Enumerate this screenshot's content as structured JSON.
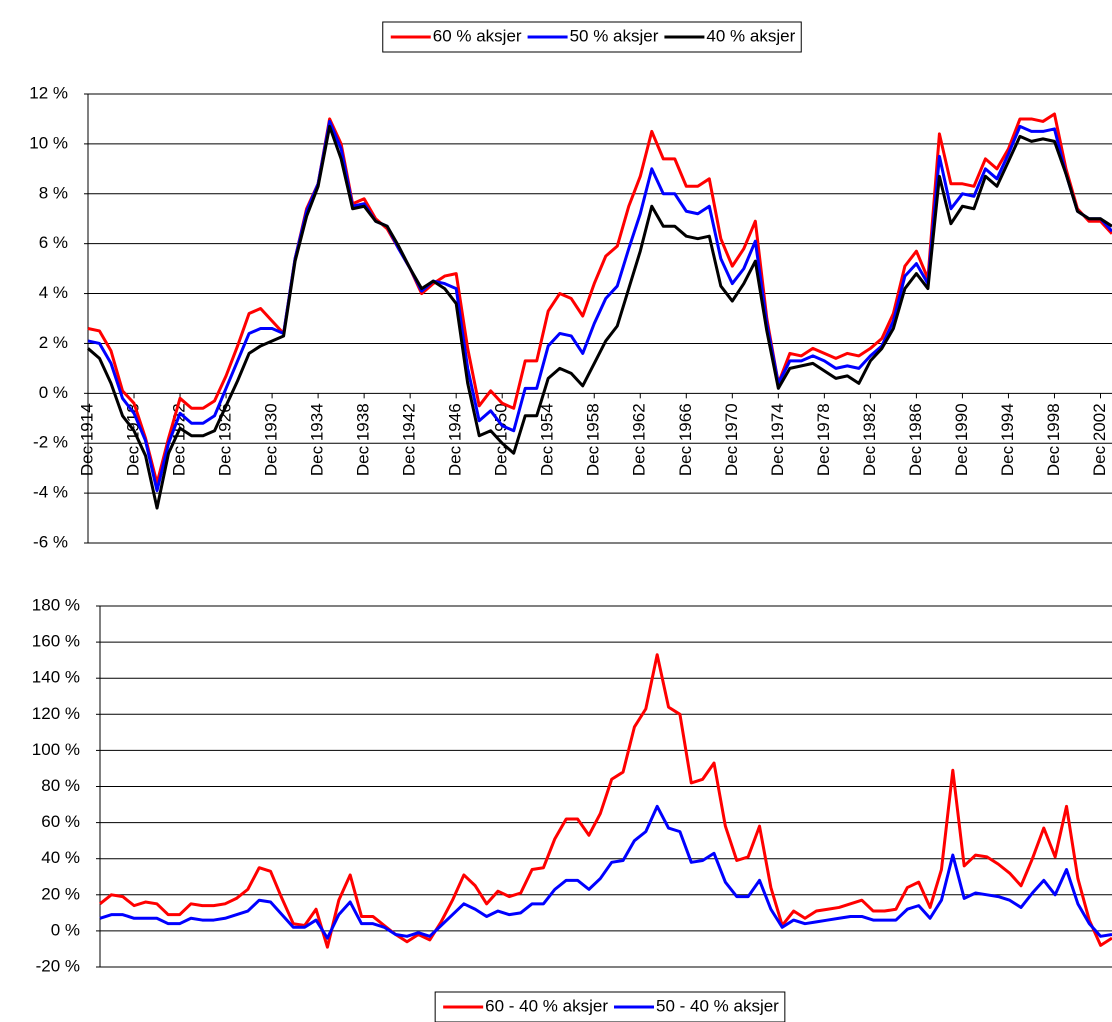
{
  "chart_data": [
    {
      "type": "line",
      "legend": "top",
      "grid": true,
      "x": [
        1914,
        1915,
        1916,
        1917,
        1918,
        1919,
        1920,
        1921,
        1922,
        1923,
        1924,
        1925,
        1926,
        1927,
        1928,
        1929,
        1930,
        1931,
        1932,
        1933,
        1934,
        1935,
        1936,
        1937,
        1938,
        1939,
        1940,
        1941,
        1942,
        1943,
        1944,
        1945,
        1946,
        1947,
        1948,
        1949,
        1950,
        1951,
        1952,
        1953,
        1954,
        1955,
        1956,
        1957,
        1958,
        1959,
        1960,
        1961,
        1962,
        1963,
        1964,
        1965,
        1966,
        1967,
        1968,
        1969,
        1970,
        1971,
        1972,
        1973,
        1974,
        1975,
        1976,
        1977,
        1978,
        1979,
        1980,
        1981,
        1982,
        1983,
        1984,
        1985,
        1986,
        1987,
        1988,
        1989,
        1990,
        1991,
        1992,
        1993,
        1994,
        1995,
        1996,
        1997,
        1998,
        1999,
        2000,
        2001,
        2002,
        2003
      ],
      "xlim": [
        1914,
        2003
      ],
      "xticks": [
        {
          "value": 1914,
          "label": "Dec 1914"
        },
        {
          "value": 1918,
          "label": "Dec 1918"
        },
        {
          "value": 1922,
          "label": "Dec 1922"
        },
        {
          "value": 1926,
          "label": "Dec 1926"
        },
        {
          "value": 1930,
          "label": "Dec 1930"
        },
        {
          "value": 1934,
          "label": "Dec 1934"
        },
        {
          "value": 1938,
          "label": "Dec 1938"
        },
        {
          "value": 1942,
          "label": "Dec 1942"
        },
        {
          "value": 1946,
          "label": "Dec 1946"
        },
        {
          "value": 1950,
          "label": "Dec 1950"
        },
        {
          "value": 1954,
          "label": "Dec 1954"
        },
        {
          "value": 1958,
          "label": "Dec 1958"
        },
        {
          "value": 1962,
          "label": "Dec 1962"
        },
        {
          "value": 1966,
          "label": "Dec 1966"
        },
        {
          "value": 1970,
          "label": "Dec 1970"
        },
        {
          "value": 1974,
          "label": "Dec 1974"
        },
        {
          "value": 1978,
          "label": "Dec 1978"
        },
        {
          "value": 1982,
          "label": "Dec 1982"
        },
        {
          "value": 1986,
          "label": "Dec 1986"
        },
        {
          "value": 1990,
          "label": "Dec 1990"
        },
        {
          "value": 1994,
          "label": "Dec 1994"
        },
        {
          "value": 1998,
          "label": "Dec 1998"
        },
        {
          "value": 2002,
          "label": "Dec 2002"
        }
      ],
      "ylim": [
        -6,
        12
      ],
      "yticks": [
        {
          "value": -6,
          "label": "-6 %"
        },
        {
          "value": -4,
          "label": "-4 %"
        },
        {
          "value": -2,
          "label": "-2 %"
        },
        {
          "value": 0,
          "label": "0 %"
        },
        {
          "value": 2,
          "label": "2 %"
        },
        {
          "value": 4,
          "label": "4 %"
        },
        {
          "value": 6,
          "label": "6 %"
        },
        {
          "value": 8,
          "label": "8 %"
        },
        {
          "value": 10,
          "label": "10 %"
        },
        {
          "value": 12,
          "label": "12 %"
        }
      ],
      "series": [
        {
          "name": "60 % aksjer",
          "color": "#ff0000",
          "values": [
            2.6,
            2.5,
            1.7,
            0.1,
            -0.4,
            -1.8,
            -3.6,
            -1.8,
            -0.2,
            -0.6,
            -0.6,
            -0.3,
            0.7,
            1.9,
            3.2,
            3.4,
            2.9,
            2.4,
            5.4,
            7.4,
            8.4,
            11.0,
            10.0,
            7.6,
            7.8,
            7.0,
            6.6,
            5.8,
            5.0,
            4.0,
            4.4,
            4.7,
            4.8,
            1.8,
            -0.5,
            0.1,
            -0.4,
            -0.6,
            1.3,
            1.3,
            3.3,
            4.0,
            3.8,
            3.1,
            4.4,
            5.5,
            5.9,
            7.5,
            8.7,
            10.5,
            9.4,
            9.4,
            8.3,
            8.3,
            8.6,
            6.2,
            5.1,
            5.8,
            6.9,
            3.0,
            0.4,
            1.6,
            1.5,
            1.8,
            1.6,
            1.4,
            1.6,
            1.5,
            1.8,
            2.2,
            3.2,
            5.1,
            5.7,
            4.6,
            10.4,
            8.4,
            8.4,
            8.3,
            9.4,
            9.0,
            9.8,
            11.0,
            11.0,
            10.9,
            11.2,
            9.0,
            7.4,
            6.9,
            6.9,
            6.4
          ]
        },
        {
          "name": "50 % aksjer",
          "color": "#0000ff",
          "values": [
            2.1,
            2.0,
            1.2,
            -0.2,
            -0.8,
            -1.9,
            -3.9,
            -2.0,
            -0.8,
            -1.2,
            -1.2,
            -0.9,
            0.2,
            1.3,
            2.4,
            2.6,
            2.6,
            2.4,
            5.4,
            7.3,
            8.4,
            10.9,
            9.8,
            7.5,
            7.6,
            6.9,
            6.7,
            5.8,
            5.0,
            4.1,
            4.5,
            4.4,
            4.2,
            1.0,
            -1.1,
            -0.7,
            -1.3,
            -1.5,
            0.2,
            0.2,
            1.9,
            2.4,
            2.3,
            1.6,
            2.8,
            3.8,
            4.3,
            5.8,
            7.2,
            9.0,
            8.0,
            8.0,
            7.3,
            7.2,
            7.5,
            5.4,
            4.4,
            5.0,
            6.1,
            2.8,
            0.4,
            1.3,
            1.3,
            1.5,
            1.3,
            1.0,
            1.1,
            1.0,
            1.5,
            1.9,
            2.9,
            4.7,
            5.2,
            4.4,
            9.5,
            7.4,
            8.0,
            7.9,
            9.0,
            8.6,
            9.6,
            10.7,
            10.5,
            10.5,
            10.6,
            8.8,
            7.3,
            7.0,
            7.0,
            6.5
          ]
        },
        {
          "name": "40 % aksjer",
          "color": "#000000",
          "values": [
            1.8,
            1.4,
            0.4,
            -0.9,
            -1.5,
            -2.5,
            -4.6,
            -2.4,
            -1.4,
            -1.7,
            -1.7,
            -1.5,
            -0.5,
            0.5,
            1.6,
            1.9,
            2.1,
            2.3,
            5.3,
            7.1,
            8.3,
            10.7,
            9.4,
            7.4,
            7.5,
            6.9,
            6.7,
            5.9,
            5.0,
            4.2,
            4.5,
            4.2,
            3.6,
            0.4,
            -1.7,
            -1.5,
            -2.0,
            -2.4,
            -0.9,
            -0.9,
            0.6,
            1.0,
            0.8,
            0.3,
            1.2,
            2.1,
            2.7,
            4.2,
            5.7,
            7.5,
            6.7,
            6.7,
            6.3,
            6.2,
            6.3,
            4.3,
            3.7,
            4.4,
            5.3,
            2.5,
            0.2,
            1.0,
            1.1,
            1.2,
            0.9,
            0.6,
            0.7,
            0.4,
            1.3,
            1.8,
            2.6,
            4.2,
            4.8,
            4.2,
            8.7,
            6.8,
            7.5,
            7.4,
            8.7,
            8.3,
            9.3,
            10.3,
            10.1,
            10.2,
            10.1,
            8.8,
            7.3,
            7.0,
            7.0,
            6.7
          ]
        }
      ]
    },
    {
      "type": "line",
      "legend": "bottom",
      "grid": true,
      "x": [
        1914,
        1915,
        1916,
        1917,
        1918,
        1919,
        1920,
        1921,
        1922,
        1923,
        1924,
        1925,
        1926,
        1927,
        1928,
        1929,
        1930,
        1931,
        1932,
        1933,
        1934,
        1935,
        1936,
        1937,
        1938,
        1939,
        1940,
        1941,
        1942,
        1943,
        1944,
        1945,
        1946,
        1947,
        1948,
        1949,
        1950,
        1951,
        1952,
        1953,
        1954,
        1955,
        1956,
        1957,
        1958,
        1959,
        1960,
        1961,
        1962,
        1963,
        1964,
        1965,
        1966,
        1967,
        1968,
        1969,
        1970,
        1971,
        1972,
        1973,
        1974,
        1975,
        1976,
        1977,
        1978,
        1979,
        1980,
        1981,
        1982,
        1983,
        1984,
        1985,
        1986,
        1987,
        1988,
        1989,
        1990,
        1991,
        1992,
        1993,
        1994,
        1995,
        1996,
        1997,
        1998,
        1999,
        2000,
        2001,
        2002,
        2003
      ],
      "xlim": [
        1914,
        2003
      ],
      "ylim": [
        -20,
        180
      ],
      "yticks": [
        {
          "value": -20,
          "label": "-20 %"
        },
        {
          "value": 0,
          "label": "0 %"
        },
        {
          "value": 20,
          "label": "20 %"
        },
        {
          "value": 40,
          "label": "40 %"
        },
        {
          "value": 60,
          "label": "60 %"
        },
        {
          "value": 80,
          "label": "80 %"
        },
        {
          "value": 100,
          "label": "100 %"
        },
        {
          "value": 120,
          "label": "120 %"
        },
        {
          "value": 140,
          "label": "140 %"
        },
        {
          "value": 160,
          "label": "160 %"
        },
        {
          "value": 180,
          "label": "180 %"
        }
      ],
      "series": [
        {
          "name": "60 - 40 % aksjer",
          "color": "#ff0000",
          "values": [
            15,
            20,
            19,
            14,
            16,
            15,
            9,
            9,
            15,
            14,
            14,
            15,
            18,
            23,
            35,
            33,
            18,
            4,
            3,
            12,
            -9,
            17,
            31,
            8,
            8,
            3,
            -2,
            -6,
            -2,
            -5,
            5,
            17,
            31,
            25,
            15,
            22,
            19,
            21,
            34,
            35,
            51,
            62,
            62,
            53,
            65,
            84,
            88,
            113,
            123,
            153,
            124,
            120,
            82,
            84,
            93,
            58,
            39,
            41,
            58,
            24,
            3,
            11,
            7,
            11,
            12,
            13,
            15,
            17,
            11,
            11,
            12,
            24,
            27,
            13,
            34,
            89,
            36,
            42,
            41,
            37,
            32,
            25,
            40,
            57,
            41,
            69,
            29,
            6,
            -8,
            -4
          ]
        },
        {
          "name": "50 - 40 % aksjer",
          "color": "#0000ff",
          "values": [
            7,
            9,
            9,
            7,
            7,
            7,
            4,
            4,
            7,
            6,
            6,
            7,
            9,
            11,
            17,
            16,
            9,
            2,
            2,
            6,
            -4,
            9,
            16,
            4,
            4,
            2,
            -2,
            -3,
            -1,
            -3,
            3,
            9,
            15,
            12,
            8,
            11,
            9,
            10,
            15,
            15,
            23,
            28,
            28,
            23,
            29,
            38,
            39,
            50,
            55,
            69,
            57,
            55,
            38,
            39,
            43,
            27,
            19,
            19,
            28,
            12,
            2,
            6,
            4,
            5,
            6,
            7,
            8,
            8,
            6,
            6,
            6,
            12,
            14,
            7,
            17,
            42,
            18,
            21,
            20,
            19,
            17,
            13,
            21,
            28,
            20,
            34,
            15,
            4,
            -3,
            -2
          ]
        }
      ]
    }
  ]
}
